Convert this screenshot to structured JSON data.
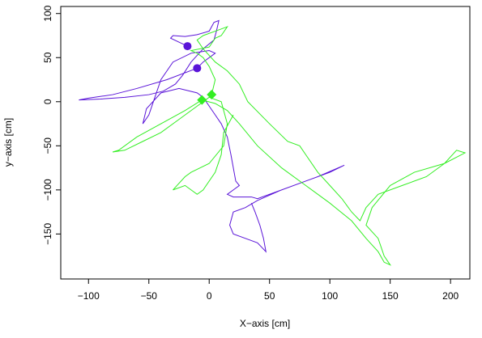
{
  "chart_data": {
    "type": "line",
    "xlabel": "X−axis [cm]",
    "ylabel": "y−axis [cm]",
    "xlim": [
      -123,
      216
    ],
    "ylim": [
      -201,
      108
    ],
    "xticks": [
      {
        "value": -100,
        "label": "−100"
      },
      {
        "value": -50,
        "label": "−50"
      },
      0,
      50,
      100,
      150,
      200
    ],
    "yticks": [
      {
        "value": -150,
        "label": "−150"
      },
      {
        "value": -100,
        "label": "−100"
      },
      {
        "value": -50,
        "label": "−50"
      },
      0,
      50,
      100
    ],
    "series": [
      {
        "color": "#5a14d8",
        "x": [
          -18,
          -32,
          -30,
          -20,
          -10,
          0,
          4,
          8,
          6,
          4,
          -5,
          -15,
          -22,
          -28,
          -38,
          -50,
          -70,
          -90,
          -108,
          -100,
          -80,
          -60,
          -35,
          -10,
          -5,
          5,
          0,
          -15,
          -30,
          -40,
          -45,
          -50,
          -55,
          -52,
          -40,
          -25,
          -10,
          -5,
          0,
          5,
          10,
          15,
          18,
          20,
          22,
          25,
          20,
          15,
          20,
          35,
          40,
          60,
          80,
          100,
          112,
          90,
          60,
          40,
          30,
          20,
          17,
          20,
          30,
          40,
          47,
          45,
          42,
          38,
          35
        ],
        "values": [
          63,
          72,
          75,
          74,
          76,
          80,
          90,
          92,
          80,
          70,
          60,
          45,
          30,
          20,
          12,
          8,
          5,
          3,
          2,
          4,
          8,
          15,
          25,
          38,
          45,
          55,
          58,
          55,
          45,
          25,
          5,
          -15,
          -25,
          -8,
          10,
          15,
          10,
          5,
          -5,
          -15,
          -25,
          -40,
          -60,
          -75,
          -90,
          -95,
          -100,
          -105,
          -108,
          -108,
          -110,
          -100,
          -90,
          -80,
          -72,
          -85,
          -100,
          -112,
          -120,
          -125,
          -140,
          -150,
          -155,
          -160,
          -170,
          -155,
          -140,
          -125,
          -115
        ]
      },
      {
        "color": "#33ee22",
        "x": [
          2,
          5,
          0,
          -5,
          -10,
          -15,
          0,
          5,
          10,
          15,
          5,
          -5,
          -10,
          -5,
          5,
          15,
          25,
          32,
          50,
          65,
          75,
          80,
          90,
          100,
          110,
          118,
          125,
          130,
          140,
          160,
          180,
          195,
          205,
          212,
          195,
          170,
          150,
          135,
          130,
          140,
          145,
          150,
          145,
          140,
          130,
          118,
          100,
          80,
          60,
          40,
          25,
          15,
          5,
          -6,
          -20,
          -40,
          -60,
          -75,
          -80,
          -70,
          -55,
          -40,
          -25,
          -10,
          0,
          10,
          15,
          12,
          0,
          -15,
          -20,
          -30,
          -20,
          -10,
          -5,
          5,
          10,
          12,
          20
        ],
        "values": [
          8,
          25,
          40,
          50,
          55,
          58,
          62,
          72,
          75,
          85,
          80,
          75,
          70,
          60,
          45,
          35,
          20,
          0,
          -25,
          -45,
          -50,
          -60,
          -80,
          -95,
          -110,
          -125,
          -135,
          -120,
          -105,
          -95,
          -85,
          -70,
          -55,
          -58,
          -70,
          -80,
          -95,
          -120,
          -140,
          -155,
          -175,
          -185,
          -182,
          -170,
          -155,
          -135,
          -115,
          -95,
          -75,
          -50,
          -25,
          -10,
          -2,
          2,
          -10,
          -25,
          -40,
          -55,
          -57,
          -55,
          -45,
          -35,
          -20,
          -5,
          5,
          0,
          -25,
          -50,
          -70,
          -80,
          -85,
          -100,
          -95,
          -105,
          -100,
          -80,
          -60,
          -35,
          -15
        ]
      }
    ],
    "points": [
      {
        "shape": "circle",
        "color": "#5a14d8",
        "x": [
          -18,
          -10
        ],
        "values": [
          63,
          38
        ]
      },
      {
        "shape": "diamond",
        "color": "#33ee22",
        "x": [
          -6,
          2
        ],
        "values": [
          2,
          8
        ]
      }
    ]
  }
}
